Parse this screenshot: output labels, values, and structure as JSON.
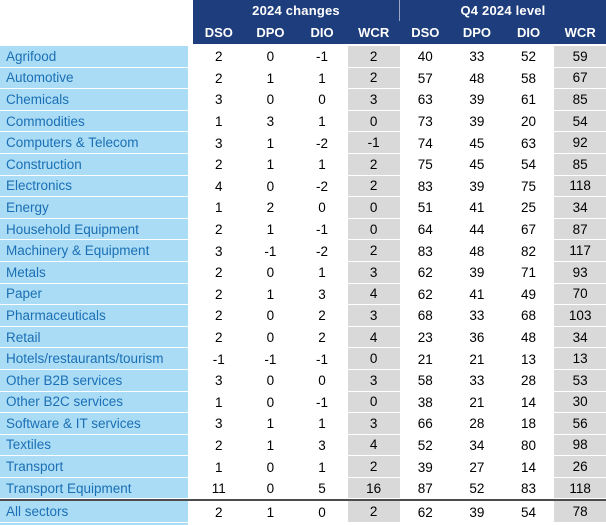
{
  "chart_data": {
    "type": "table",
    "title": "",
    "column_groups": [
      {
        "label": "2024 changes",
        "columns": [
          "DSO",
          "DPO",
          "DIO",
          "WCR"
        ]
      },
      {
        "label": "Q4 2024 level",
        "columns": [
          "DSO",
          "DPO",
          "DIO",
          "WCR"
        ]
      }
    ],
    "sub_headers": [
      "DSO",
      "DPO",
      "DIO",
      "WCR",
      "DSO",
      "DPO",
      "DIO",
      "WCR"
    ],
    "highlighted_column": "WCR",
    "rows": [
      {
        "sector": "Agrifood",
        "values": [
          2,
          0,
          -1,
          2,
          40,
          33,
          52,
          59
        ]
      },
      {
        "sector": "Automotive",
        "values": [
          2,
          1,
          1,
          2,
          57,
          48,
          58,
          67
        ]
      },
      {
        "sector": "Chemicals",
        "values": [
          3,
          0,
          0,
          3,
          63,
          39,
          61,
          85
        ]
      },
      {
        "sector": "Commodities",
        "values": [
          1,
          3,
          1,
          0,
          73,
          39,
          20,
          54
        ]
      },
      {
        "sector": "Computers & Telecom",
        "values": [
          3,
          1,
          -2,
          -1,
          74,
          45,
          63,
          92
        ]
      },
      {
        "sector": "Construction",
        "values": [
          2,
          1,
          1,
          2,
          75,
          45,
          54,
          85
        ]
      },
      {
        "sector": "Electronics",
        "values": [
          4,
          0,
          -2,
          2,
          83,
          39,
          75,
          118
        ]
      },
      {
        "sector": "Energy",
        "values": [
          1,
          2,
          0,
          0,
          51,
          41,
          25,
          34
        ]
      },
      {
        "sector": "Household Equipment",
        "values": [
          2,
          1,
          -1,
          0,
          64,
          44,
          67,
          87
        ]
      },
      {
        "sector": "Machinery & Equipment",
        "values": [
          3,
          -1,
          -2,
          2,
          83,
          48,
          82,
          117
        ]
      },
      {
        "sector": "Metals",
        "values": [
          2,
          0,
          1,
          3,
          62,
          39,
          71,
          93
        ]
      },
      {
        "sector": "Paper",
        "values": [
          2,
          1,
          3,
          4,
          62,
          41,
          49,
          70
        ]
      },
      {
        "sector": "Pharmaceuticals",
        "values": [
          2,
          0,
          2,
          3,
          68,
          33,
          68,
          103
        ]
      },
      {
        "sector": "Retail",
        "values": [
          2,
          0,
          2,
          4,
          23,
          36,
          48,
          34
        ]
      },
      {
        "sector": "Hotels/restaurants/tourism",
        "values": [
          -1,
          -1,
          -1,
          0,
          21,
          21,
          13,
          13
        ]
      },
      {
        "sector": "Other B2B services",
        "values": [
          3,
          0,
          0,
          3,
          58,
          33,
          28,
          53
        ]
      },
      {
        "sector": "Other B2C services",
        "values": [
          1,
          0,
          -1,
          0,
          38,
          21,
          14,
          30
        ]
      },
      {
        "sector": "Software & IT services",
        "values": [
          3,
          1,
          1,
          3,
          66,
          28,
          18,
          56
        ]
      },
      {
        "sector": "Textiles",
        "values": [
          2,
          1,
          3,
          4,
          52,
          34,
          80,
          98
        ]
      },
      {
        "sector": "Transport",
        "values": [
          1,
          0,
          1,
          2,
          39,
          27,
          14,
          26
        ]
      },
      {
        "sector": "Transport Equipment",
        "values": [
          11,
          0,
          5,
          16,
          87,
          52,
          83,
          118
        ]
      }
    ],
    "footer": {
      "sector": "All sectors",
      "values": [
        2,
        1,
        0,
        2,
        62,
        39,
        54,
        78
      ]
    }
  },
  "colors": {
    "header_bg": "#1e3d7c",
    "header_text": "#ffffff",
    "row_label_bg": "#aadcf5",
    "row_label_text": "#1b6fb5",
    "wcr_column_bg": "#d9d9d9",
    "value_text": "#000000",
    "footer_divider": "#4d4d4f"
  }
}
